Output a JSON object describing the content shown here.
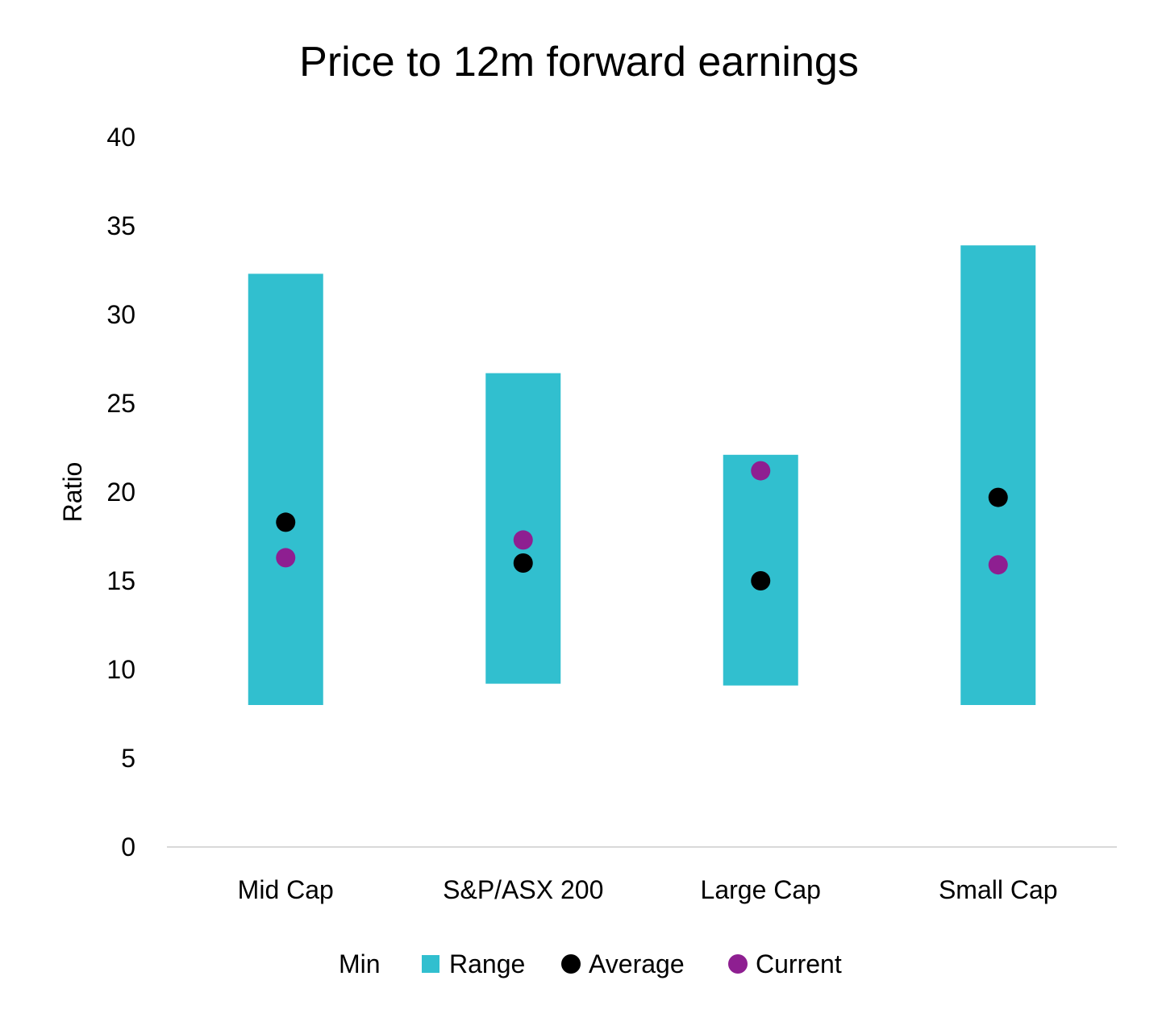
{
  "chart_data": {
    "type": "bar",
    "title": "Price to 12m forward earnings",
    "ylabel": "Ratio",
    "xlabel": "",
    "ylim": [
      0,
      40
    ],
    "yticks": [
      0,
      5,
      10,
      15,
      20,
      25,
      30,
      35,
      40
    ],
    "grid": false,
    "legend_position": "bottom",
    "categories": [
      "Mid Cap",
      "S&P/ASX 200",
      "Large Cap",
      "Small Cap"
    ],
    "series": [
      {
        "name": "Min",
        "kind": "stacked-invisible-bar",
        "values": [
          8.0,
          9.2,
          9.1,
          8.0
        ]
      },
      {
        "name": "Range",
        "kind": "stacked-bar",
        "color": "#31BFCF",
        "values": [
          24.3,
          17.5,
          13.0,
          25.9
        ]
      },
      {
        "name": "Average",
        "kind": "marker",
        "color": "#000000",
        "values": [
          18.3,
          16.0,
          15.0,
          19.7
        ]
      },
      {
        "name": "Current",
        "kind": "marker",
        "color": "#8E1F91",
        "values": [
          16.3,
          17.3,
          21.2,
          15.9
        ]
      }
    ]
  }
}
